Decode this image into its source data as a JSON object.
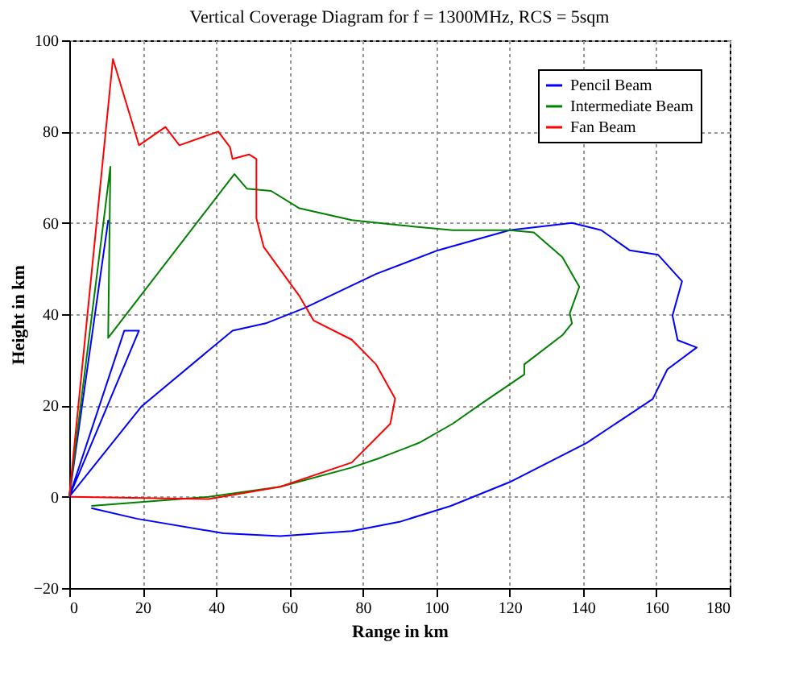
{
  "chart_data": {
    "type": "line",
    "title": "Vertical Coverage Diagram for f = 1300MHz, RCS = 5sqm",
    "xlabel": "Range in km",
    "ylabel": "Height in km",
    "xlim": [
      0,
      180
    ],
    "ylim": [
      -20,
      100
    ],
    "xticks": [
      0,
      20,
      40,
      60,
      80,
      100,
      120,
      140,
      160,
      180
    ],
    "yticks": [
      -20,
      0,
      20,
      40,
      60,
      80,
      100
    ],
    "grid": true,
    "legend": "top right",
    "marker": "none",
    "line_style": "solid",
    "series": [
      {
        "name": "Pencil Beam",
        "color": "#0000ff",
        "x": [
          0,
          10.6,
          0,
          19,
          15,
          0,
          19.7,
          44.5,
          53.6,
          64,
          83.6,
          100.5,
          120,
          137,
          145,
          152.7,
          160.5,
          167,
          164.4,
          165.8,
          171,
          163,
          159,
          141,
          120,
          104,
          90,
          77,
          57.5,
          42,
          18.4,
          6
        ],
        "values": [
          0,
          60.5,
          0,
          36.4,
          36.4,
          0,
          19.8,
          36.4,
          38,
          41.3,
          48.8,
          54,
          58.4,
          60,
          58.4,
          54,
          53,
          47.2,
          39.7,
          34.3,
          32.7,
          27.9,
          21.4,
          11.8,
          3.2,
          -2,
          -5.5,
          -7.5,
          -8.6,
          -8,
          -4.8,
          -2.5
        ]
      },
      {
        "name": "Intermediate Beam",
        "color": "#008000",
        "x": [
          0,
          11.2,
          10.6,
          45,
          48.4,
          55,
          62.7,
          77,
          90,
          104.5,
          120,
          126.6,
          134.4,
          139,
          136.4,
          137,
          134.4,
          124,
          124,
          112.3,
          104.5,
          95.3,
          85,
          77,
          57.5,
          38,
          6
        ],
        "values": [
          0,
          72.3,
          34.8,
          70.7,
          67.5,
          67,
          63.2,
          60.6,
          59.5,
          58.4,
          58.4,
          57.9,
          52.5,
          46,
          40.2,
          38,
          35.4,
          29,
          26.8,
          20.4,
          16,
          11.8,
          8.6,
          6.4,
          2.2,
          0,
          -2
        ]
      },
      {
        "name": "Fan Beam",
        "color": "#ff0000",
        "x": [
          0,
          11.9,
          19,
          26.2,
          30,
          40.6,
          43.8,
          44.5,
          49,
          51,
          51,
          53,
          62.7,
          66.6,
          77,
          83.6,
          88.8,
          87.5,
          77,
          57.5,
          38,
          0.5
        ],
        "values": [
          0,
          95.9,
          77,
          81,
          77,
          80,
          76.6,
          74,
          75,
          74,
          61,
          54.7,
          44,
          38.6,
          34.4,
          29,
          21.5,
          16,
          7.5,
          2.2,
          -0.5,
          0
        ]
      }
    ]
  }
}
